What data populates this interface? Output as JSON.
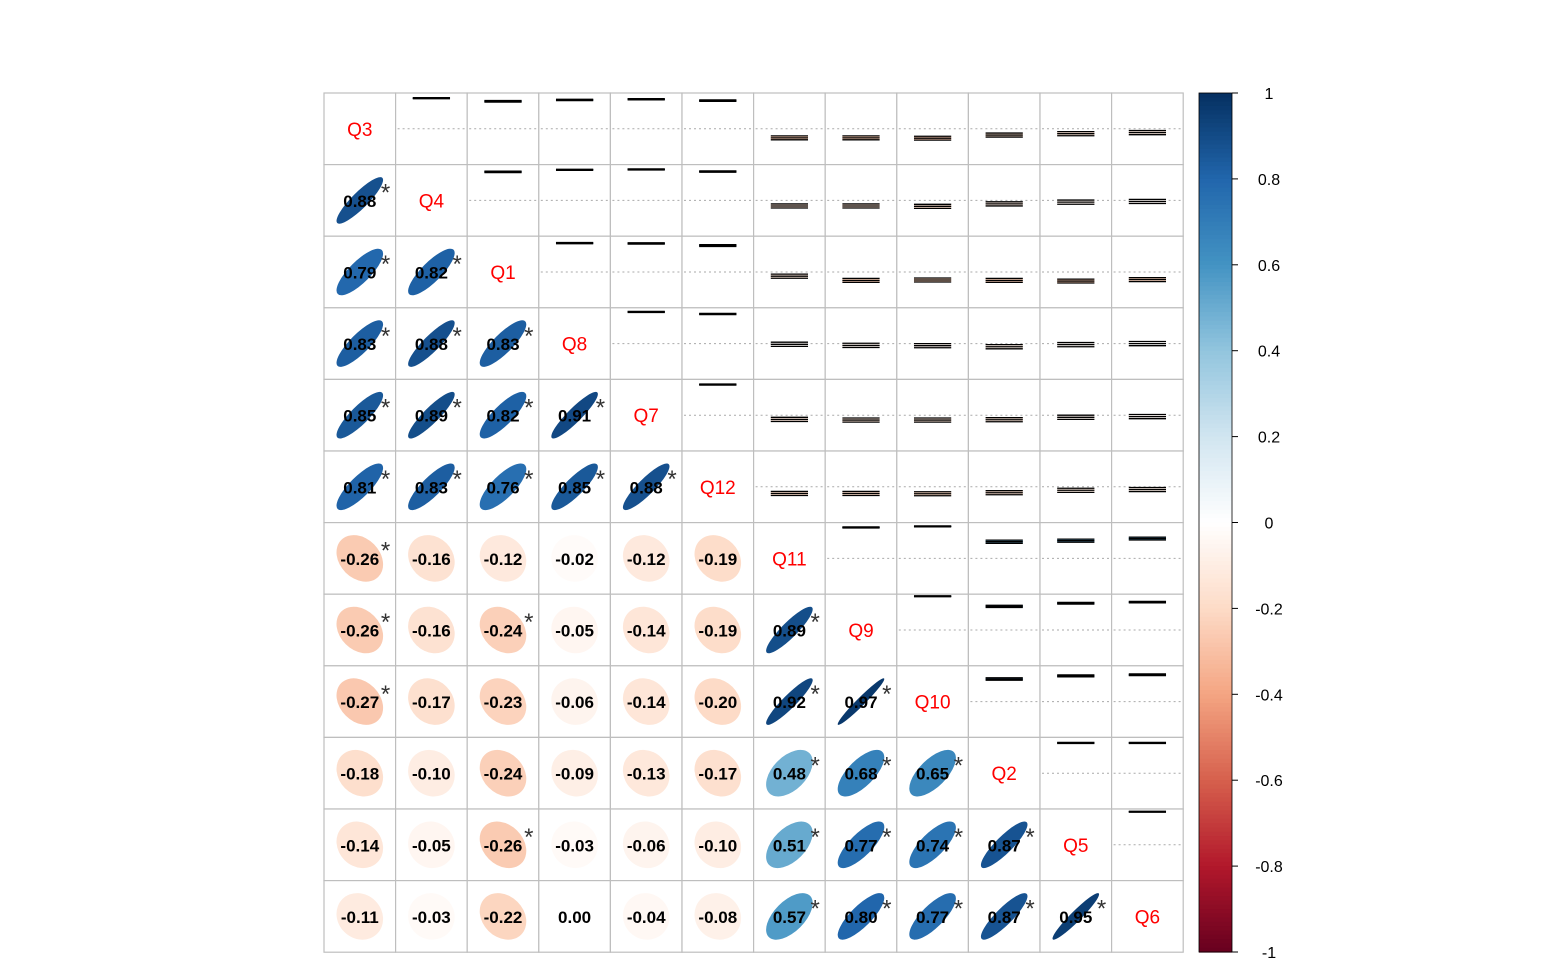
{
  "chart_data": {
    "type": "heatmap",
    "title": "",
    "variables": [
      "Q3",
      "Q4",
      "Q1",
      "Q8",
      "Q7",
      "Q12",
      "Q11",
      "Q9",
      "Q10",
      "Q2",
      "Q5",
      "Q6"
    ],
    "lower_triangle": "ellipse glyphs with correlation coefficients; asterisk marks significant correlations",
    "upper_triangle": "confidence interval bars (lower, estimate, upper)",
    "diagonal": "variable names in red",
    "correlations": [
      [
        1.0,
        0.88,
        0.79,
        0.83,
        0.85,
        0.81,
        -0.26,
        -0.26,
        -0.27,
        -0.18,
        -0.14,
        -0.11
      ],
      [
        0.88,
        1.0,
        0.82,
        0.88,
        0.89,
        0.83,
        -0.16,
        -0.16,
        -0.17,
        -0.1,
        -0.05,
        -0.03
      ],
      [
        0.79,
        0.82,
        1.0,
        0.83,
        0.82,
        0.76,
        -0.12,
        -0.24,
        -0.23,
        -0.24,
        -0.26,
        -0.22
      ],
      [
        0.83,
        0.88,
        0.83,
        1.0,
        0.91,
        0.85,
        -0.02,
        -0.05,
        -0.06,
        -0.09,
        -0.03,
        0.0
      ],
      [
        0.85,
        0.89,
        0.82,
        0.91,
        1.0,
        0.88,
        -0.12,
        -0.14,
        -0.14,
        -0.13,
        -0.06,
        -0.04
      ],
      [
        0.81,
        0.83,
        0.76,
        0.85,
        0.88,
        1.0,
        -0.19,
        -0.19,
        -0.2,
        -0.17,
        -0.1,
        -0.08
      ],
      [
        -0.26,
        -0.16,
        -0.12,
        -0.02,
        -0.12,
        -0.19,
        1.0,
        0.89,
        0.92,
        0.48,
        0.51,
        0.57
      ],
      [
        -0.26,
        -0.16,
        -0.24,
        -0.05,
        -0.14,
        -0.19,
        0.89,
        1.0,
        0.97,
        0.68,
        0.77,
        0.8
      ],
      [
        -0.27,
        -0.17,
        -0.23,
        -0.06,
        -0.14,
        -0.2,
        0.92,
        0.97,
        1.0,
        0.65,
        0.74,
        0.77
      ],
      [
        -0.18,
        -0.1,
        -0.24,
        -0.09,
        -0.13,
        -0.17,
        0.48,
        0.68,
        0.65,
        1.0,
        0.87,
        0.87
      ],
      [
        -0.14,
        -0.05,
        -0.26,
        -0.03,
        -0.06,
        -0.1,
        0.51,
        0.77,
        0.74,
        0.87,
        1.0,
        0.95
      ],
      [
        -0.11,
        -0.03,
        -0.22,
        0.0,
        -0.04,
        -0.08,
        0.57,
        0.8,
        0.77,
        0.87,
        0.95,
        1.0
      ]
    ],
    "value_labels": [
      [
        "Q3",
        "0.88",
        "0.79",
        "0.83",
        "0.85",
        "0.81",
        "-0.26",
        "-0.26",
        "-0.27",
        "-0.18",
        "-0.14",
        "-0.11"
      ],
      [
        "0.88",
        "Q4",
        "0.82",
        "0.88",
        "0.89",
        "0.83",
        "-0.16",
        "-0.16",
        "-0.17",
        "-0.10",
        "-0.05",
        "-0.03"
      ],
      [
        "0.79",
        "0.82",
        "Q1",
        "0.83",
        "0.82",
        "0.76",
        "-0.12",
        "-0.24",
        "-0.23",
        "-0.24",
        "-0.26",
        "-0.22"
      ],
      [
        "0.83",
        "0.88",
        "0.83",
        "Q8",
        "0.91",
        "0.85",
        "-0.02",
        "-0.05",
        "-0.06",
        "-0.09",
        "-0.03",
        "0.00"
      ],
      [
        "0.85",
        "0.89",
        "0.82",
        "0.91",
        "Q7",
        "0.88",
        "-0.12",
        "-0.14",
        "-0.14",
        "-0.13",
        "-0.06",
        "-0.04"
      ],
      [
        "0.81",
        "0.83",
        "0.76",
        "0.85",
        "0.88",
        "Q12",
        "-0.19",
        "-0.19",
        "-0.20",
        "-0.17",
        "-0.10",
        "-0.08"
      ],
      [
        "-0.26",
        "-0.16",
        "-0.12",
        "-0.02",
        "-0.12",
        "-0.19",
        "Q11",
        "0.89",
        "0.92",
        "0.48",
        "0.51",
        "0.57"
      ],
      [
        "-0.26",
        "-0.16",
        "-0.24",
        "-0.05",
        "-0.14",
        "-0.19",
        "0.89",
        "Q9",
        "0.97",
        "0.68",
        "0.77",
        "0.80"
      ],
      [
        "-0.27",
        "-0.17",
        "-0.23",
        "-0.06",
        "-0.14",
        "-0.20",
        "0.92",
        "0.97",
        "Q10",
        "0.65",
        "0.74",
        "0.77"
      ],
      [
        "-0.18",
        "-0.10",
        "-0.24",
        "-0.09",
        "-0.13",
        "-0.17",
        "0.48",
        "0.68",
        "0.65",
        "Q2",
        "0.87",
        "0.87"
      ],
      [
        "-0.14",
        "-0.05",
        "-0.26",
        "-0.03",
        "-0.06",
        "-0.10",
        "0.51",
        "0.77",
        "0.74",
        "0.87",
        "Q5",
        "0.95"
      ],
      [
        "-0.11",
        "-0.03",
        "-0.22",
        "0.00",
        "-0.04",
        "-0.08",
        "0.57",
        "0.80",
        "0.77",
        "0.87",
        "0.95",
        "Q6"
      ]
    ],
    "significant_pairs": [
      [
        0,
        1
      ],
      [
        0,
        2
      ],
      [
        0,
        3
      ],
      [
        0,
        4
      ],
      [
        0,
        5
      ],
      [
        0,
        6
      ],
      [
        0,
        7
      ],
      [
        0,
        8
      ],
      [
        1,
        2
      ],
      [
        1,
        3
      ],
      [
        1,
        4
      ],
      [
        1,
        5
      ],
      [
        2,
        3
      ],
      [
        2,
        4
      ],
      [
        2,
        5
      ],
      [
        2,
        7
      ],
      [
        2,
        10
      ],
      [
        3,
        4
      ],
      [
        3,
        5
      ],
      [
        4,
        5
      ],
      [
        6,
        7
      ],
      [
        6,
        8
      ],
      [
        6,
        9
      ],
      [
        6,
        10
      ],
      [
        6,
        11
      ],
      [
        7,
        8
      ],
      [
        7,
        9
      ],
      [
        7,
        10
      ],
      [
        7,
        11
      ],
      [
        8,
        9
      ],
      [
        8,
        10
      ],
      [
        8,
        11
      ],
      [
        9,
        10
      ],
      [
        9,
        11
      ],
      [
        10,
        11
      ]
    ],
    "significance_marker": "*",
    "colorbar": {
      "range": [
        -1,
        1
      ],
      "tick_labels": [
        "1",
        "0.8",
        "0.6",
        "0.4",
        "0.2",
        "0",
        "-0.2",
        "-0.4",
        "-0.6",
        "-0.8",
        "-1"
      ],
      "palette": [
        "#67001F",
        "#B2182B",
        "#D6604D",
        "#F4A582",
        "#FDDBC7",
        "#FFFFFF",
        "#D1E5F0",
        "#92C5DE",
        "#4393C3",
        "#2166AC",
        "#053061"
      ]
    },
    "colors": {
      "diagonal_label": "#FF0000",
      "grid": "#BEBEBE",
      "value_text": "#000000",
      "asterisk": "#333333"
    },
    "grid": true,
    "legend_placement": "right"
  }
}
